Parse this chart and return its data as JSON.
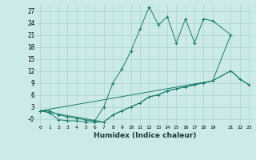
{
  "background_color": "#cceae7",
  "grid_color": "#aad4d0",
  "line_color": "#1a7a6e",
  "xlabel": "Humidex (Indice chaleur)",
  "xlim": [
    -0.5,
    23.5
  ],
  "ylim": [
    -1.5,
    28.5
  ],
  "xticks": [
    0,
    1,
    2,
    3,
    4,
    5,
    6,
    7,
    8,
    9,
    10,
    11,
    12,
    13,
    14,
    15,
    16,
    17,
    18,
    19,
    21,
    22,
    23
  ],
  "yticks": [
    0,
    3,
    6,
    9,
    12,
    15,
    18,
    21,
    24,
    27
  ],
  "ytick_labels": [
    "-0",
    "3",
    "6",
    "9",
    "12",
    "15",
    "18",
    "21",
    "24",
    "27"
  ],
  "line1_x": [
    0,
    1,
    2,
    3,
    4,
    5,
    6,
    7,
    8,
    9,
    10,
    11,
    12,
    13,
    14,
    15,
    16,
    17,
    18,
    19,
    21
  ],
  "line1_y": [
    2,
    2,
    1,
    0.5,
    0.2,
    -0.3,
    -0.5,
    3.0,
    9.0,
    12.5,
    17.0,
    22.5,
    28.0,
    23.5,
    25.5,
    19.0,
    25.0,
    19.0,
    25.0,
    24.5,
    21.0
  ],
  "line2_x": [
    0,
    1,
    2,
    3,
    4,
    5,
    6,
    7,
    8,
    9,
    10,
    11,
    12,
    13,
    14,
    15,
    16,
    17,
    18,
    19,
    21,
    22,
    23
  ],
  "line2_y": [
    2.0,
    1.5,
    -0.2,
    -0.5,
    -0.5,
    -0.8,
    -0.8,
    -0.8,
    1.0,
    2.0,
    3.0,
    4.0,
    5.5,
    6.0,
    7.0,
    7.5,
    8.0,
    8.5,
    9.0,
    9.5,
    12.0,
    10.0,
    8.5
  ],
  "line3_x": [
    0,
    19,
    21,
    22,
    23
  ],
  "line3_y": [
    2.0,
    9.5,
    12.0,
    10.0,
    8.5
  ],
  "line4_x": [
    0,
    7,
    8,
    9,
    10,
    11,
    12,
    13,
    14,
    15,
    16,
    17,
    18,
    19,
    21
  ],
  "line4_y": [
    2.0,
    -0.8,
    1.0,
    2.0,
    3.0,
    4.0,
    5.5,
    6.0,
    7.0,
    7.5,
    8.0,
    8.5,
    9.0,
    9.5,
    21.0
  ]
}
